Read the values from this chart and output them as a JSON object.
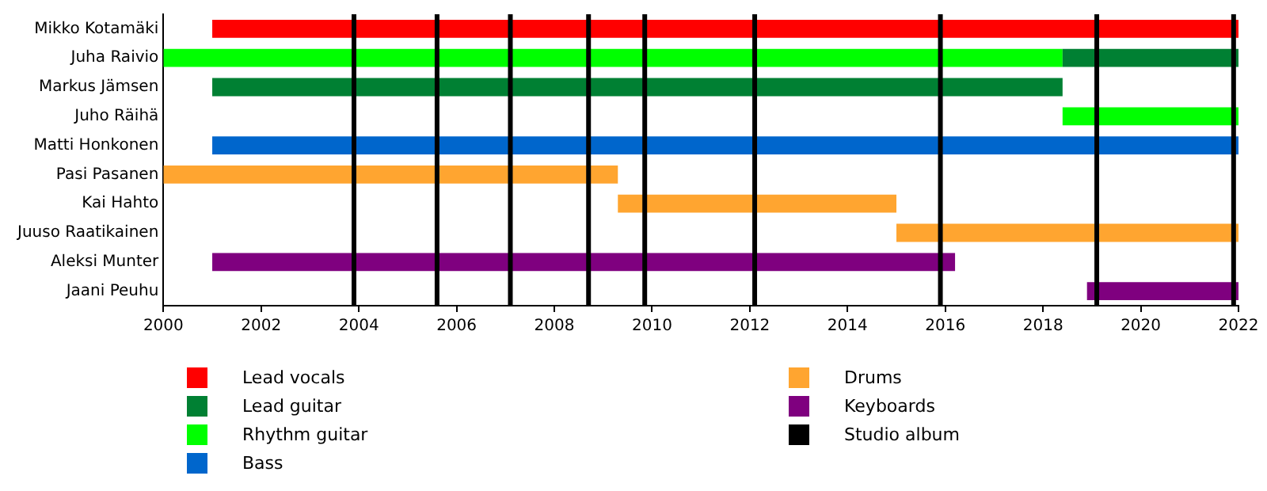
{
  "chart_data": {
    "type": "bar",
    "orientation": "horizontal",
    "legend": "bottom",
    "grid": false,
    "categories": [
      "Mikko Kotamäki",
      "Juha Raivio",
      "Markus Jämsen",
      "Juho Räihä",
      "Matti Honkonen",
      "Pasi Pasanen",
      "Kai Hahto",
      "Juuso Raatikainen",
      "Aleksi Munter",
      "Jaani Peuhu"
    ],
    "xlim": [
      2000,
      2022
    ],
    "xticks": [
      2000,
      2002,
      2004,
      2006,
      2008,
      2010,
      2012,
      2014,
      2016,
      2018,
      2020,
      2022
    ],
    "series": [
      {
        "name": "Lead vocals",
        "color": "#ff0000",
        "base": [
          2001,
          null,
          null,
          null,
          null,
          null,
          null,
          null,
          null,
          null
        ],
        "values": [
          21,
          null,
          null,
          null,
          null,
          null,
          null,
          null,
          null,
          null
        ]
      },
      {
        "name": "Lead guitar",
        "color": "#008033",
        "base": [
          null,
          2018.4,
          2001,
          null,
          null,
          null,
          null,
          null,
          null,
          null
        ],
        "values": [
          null,
          3.6,
          17.4,
          null,
          null,
          null,
          null,
          null,
          null,
          null
        ]
      },
      {
        "name": "Rhythm guitar",
        "color": "#00ff00",
        "base": [
          null,
          2000,
          null,
          2018.4,
          null,
          null,
          null,
          null,
          null,
          null
        ],
        "values": [
          null,
          18.4,
          null,
          3.6,
          null,
          null,
          null,
          null,
          null,
          null
        ]
      },
      {
        "name": "Bass",
        "color": "#0066cc",
        "base": [
          null,
          null,
          null,
          null,
          2001,
          null,
          null,
          null,
          null,
          null
        ],
        "values": [
          null,
          null,
          null,
          null,
          21,
          null,
          null,
          null,
          null,
          null
        ]
      },
      {
        "name": "Drums",
        "color": "#ffa530",
        "base": [
          null,
          null,
          null,
          null,
          null,
          2000,
          2009.3,
          2015,
          null,
          null
        ],
        "values": [
          null,
          null,
          null,
          null,
          null,
          9.3,
          5.7,
          7,
          null,
          null
        ]
      },
      {
        "name": "Keyboards",
        "color": "#7f007f",
        "base": [
          null,
          null,
          null,
          null,
          null,
          null,
          null,
          null,
          2001,
          2018.9
        ],
        "values": [
          null,
          null,
          null,
          null,
          null,
          null,
          null,
          null,
          15.2,
          3.1
        ]
      }
    ],
    "ref_lines": [
      {
        "axis": "x",
        "value": 2003.9,
        "label": "Studio album",
        "color": "#000000"
      },
      {
        "axis": "x",
        "value": 2005.6,
        "color": "#000000"
      },
      {
        "axis": "x",
        "value": 2007.1,
        "color": "#000000"
      },
      {
        "axis": "x",
        "value": 2008.7,
        "color": "#000000"
      },
      {
        "axis": "x",
        "value": 2009.85,
        "color": "#000000"
      },
      {
        "axis": "x",
        "value": 2012.1,
        "color": "#000000"
      },
      {
        "axis": "x",
        "value": 2015.9,
        "color": "#000000"
      },
      {
        "axis": "x",
        "value": 2019.1,
        "color": "#000000"
      },
      {
        "axis": "x",
        "value": 2021.9,
        "color": "#000000"
      }
    ]
  }
}
